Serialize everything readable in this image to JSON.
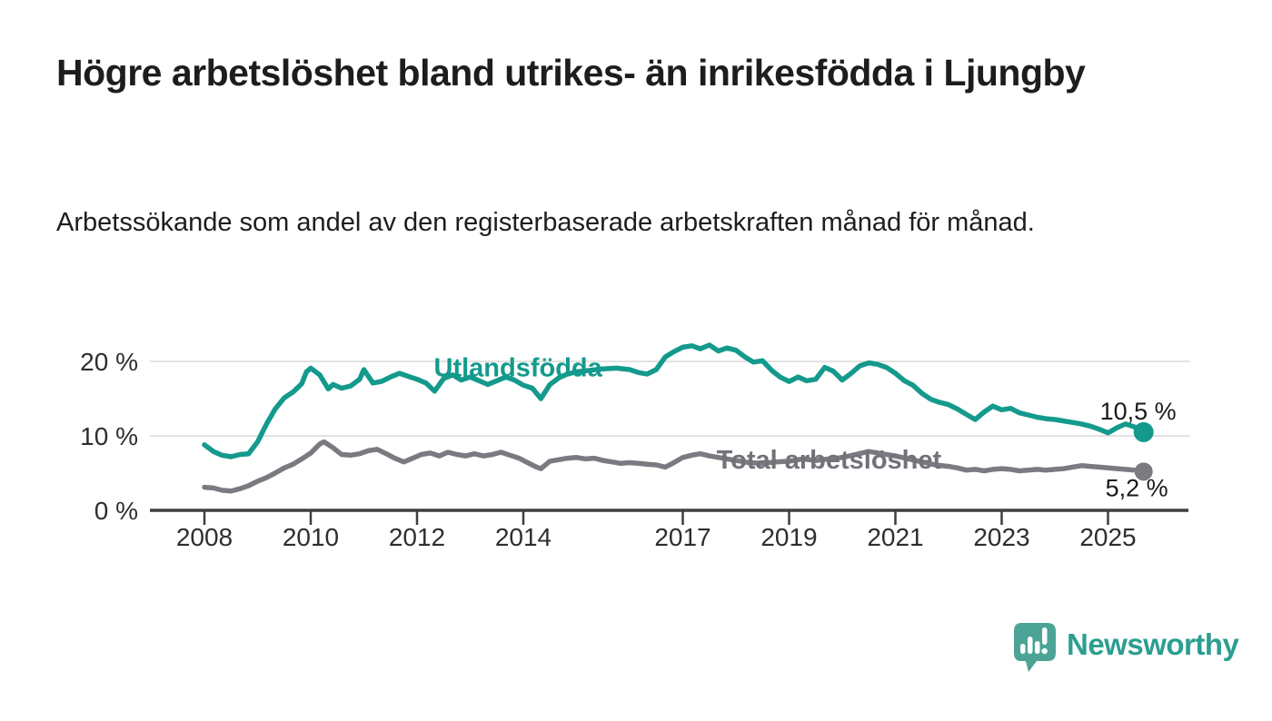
{
  "header": {
    "title": "Högre arbetslöshet bland utrikes- än inrikesfödda i Ljungby",
    "subtitle": "Arbetssökande som andel av den registerbaserade arbetskraften månad för månad."
  },
  "footer": {
    "brand": "Newsworthy",
    "logo_icon": "newsworthy-speech-bubble-bar-chart-icon"
  },
  "colors": {
    "background": "#ffffff",
    "title_text": "#1d1d1b",
    "axis_text": "#2e2e2e",
    "gridline": "#d9d9d9",
    "axis_line": "#3e3e3e",
    "value_label_text": "#1a1a1a",
    "series_foreign_born": "#149a8c",
    "series_total": "#7c7a80",
    "series_total_label": "#737179",
    "brand_teal": "#2b9e90",
    "logo_fill": "#4ba496"
  },
  "chart_data": {
    "type": "line",
    "title": "Högre arbetslöshet bland utrikes- än inrikesfödda i Ljungby",
    "subtitle": "Arbetssökande som andel av den registerbaserade arbetskraften månad för månad.",
    "xlabel": "",
    "ylabel": "",
    "grid": true,
    "legend_position": "inline-labels",
    "x_axis": {
      "range": [
        2007.6,
        2026.3
      ],
      "ticks": [
        {
          "value": 2008,
          "label": "2008"
        },
        {
          "value": 2010,
          "label": "2010"
        },
        {
          "value": 2012,
          "label": "2012"
        },
        {
          "value": 2014,
          "label": "2014"
        },
        {
          "value": 2017,
          "label": "2017"
        },
        {
          "value": 2019,
          "label": "2019"
        },
        {
          "value": 2021,
          "label": "2021"
        },
        {
          "value": 2023,
          "label": "2023"
        },
        {
          "value": 2025,
          "label": "2025"
        }
      ]
    },
    "y_axis": {
      "range": [
        0,
        24
      ],
      "unit": "%",
      "ticks": [
        {
          "value": 0,
          "label": "0 %"
        },
        {
          "value": 10,
          "label": "10 %"
        },
        {
          "value": 20,
          "label": "20 %"
        }
      ]
    },
    "series": [
      {
        "name": "Utlandsfödda",
        "label": "Utlandsfödda",
        "end_label": "10,5 %",
        "end_value": 10.5,
        "color": "#149a8c",
        "label_color": "#149a8c",
        "label_pos": {
          "x": 2013.9,
          "y": 19.2
        },
        "points": [
          [
            2008.0,
            8.8
          ],
          [
            2008.17,
            7.9
          ],
          [
            2008.33,
            7.4
          ],
          [
            2008.5,
            7.2
          ],
          [
            2008.67,
            7.5
          ],
          [
            2008.83,
            7.6
          ],
          [
            2009.0,
            9.2
          ],
          [
            2009.17,
            11.6
          ],
          [
            2009.33,
            13.6
          ],
          [
            2009.5,
            15.1
          ],
          [
            2009.67,
            15.9
          ],
          [
            2009.83,
            17.0
          ],
          [
            2009.92,
            18.6
          ],
          [
            2010.0,
            19.1
          ],
          [
            2010.17,
            18.2
          ],
          [
            2010.33,
            16.3
          ],
          [
            2010.42,
            16.9
          ],
          [
            2010.58,
            16.4
          ],
          [
            2010.75,
            16.7
          ],
          [
            2010.92,
            17.6
          ],
          [
            2011.0,
            18.9
          ],
          [
            2011.17,
            17.1
          ],
          [
            2011.33,
            17.3
          ],
          [
            2011.5,
            17.9
          ],
          [
            2011.67,
            18.4
          ],
          [
            2011.83,
            18.0
          ],
          [
            2012.0,
            17.6
          ],
          [
            2012.17,
            17.1
          ],
          [
            2012.33,
            16.0
          ],
          [
            2012.5,
            17.7
          ],
          [
            2012.67,
            18.2
          ],
          [
            2012.83,
            17.5
          ],
          [
            2013.0,
            17.9
          ],
          [
            2013.17,
            17.4
          ],
          [
            2013.33,
            16.9
          ],
          [
            2013.5,
            17.4
          ],
          [
            2013.67,
            17.9
          ],
          [
            2013.83,
            17.5
          ],
          [
            2014.0,
            16.8
          ],
          [
            2014.17,
            16.4
          ],
          [
            2014.33,
            15.0
          ],
          [
            2014.5,
            16.9
          ],
          [
            2014.67,
            17.8
          ],
          [
            2014.83,
            18.3
          ],
          [
            2015.0,
            18.6
          ],
          [
            2015.25,
            18.8
          ],
          [
            2015.5,
            19.0
          ],
          [
            2015.75,
            19.1
          ],
          [
            2016.0,
            18.9
          ],
          [
            2016.17,
            18.5
          ],
          [
            2016.33,
            18.3
          ],
          [
            2016.5,
            18.9
          ],
          [
            2016.67,
            20.6
          ],
          [
            2016.83,
            21.3
          ],
          [
            2017.0,
            21.9
          ],
          [
            2017.17,
            22.1
          ],
          [
            2017.33,
            21.7
          ],
          [
            2017.5,
            22.2
          ],
          [
            2017.67,
            21.4
          ],
          [
            2017.83,
            21.8
          ],
          [
            2018.0,
            21.5
          ],
          [
            2018.17,
            20.6
          ],
          [
            2018.33,
            19.9
          ],
          [
            2018.5,
            20.1
          ],
          [
            2018.67,
            18.8
          ],
          [
            2018.83,
            17.9
          ],
          [
            2019.0,
            17.3
          ],
          [
            2019.17,
            17.9
          ],
          [
            2019.33,
            17.4
          ],
          [
            2019.5,
            17.6
          ],
          [
            2019.67,
            19.2
          ],
          [
            2019.83,
            18.7
          ],
          [
            2020.0,
            17.5
          ],
          [
            2020.17,
            18.4
          ],
          [
            2020.33,
            19.4
          ],
          [
            2020.5,
            19.8
          ],
          [
            2020.67,
            19.6
          ],
          [
            2020.83,
            19.2
          ],
          [
            2021.0,
            18.4
          ],
          [
            2021.17,
            17.4
          ],
          [
            2021.33,
            16.8
          ],
          [
            2021.5,
            15.7
          ],
          [
            2021.67,
            14.9
          ],
          [
            2021.83,
            14.5
          ],
          [
            2022.0,
            14.2
          ],
          [
            2022.17,
            13.6
          ],
          [
            2022.33,
            12.9
          ],
          [
            2022.5,
            12.2
          ],
          [
            2022.67,
            13.2
          ],
          [
            2022.83,
            14.0
          ],
          [
            2023.0,
            13.5
          ],
          [
            2023.17,
            13.7
          ],
          [
            2023.33,
            13.1
          ],
          [
            2023.5,
            12.8
          ],
          [
            2023.67,
            12.5
          ],
          [
            2023.83,
            12.3
          ],
          [
            2024.0,
            12.2
          ],
          [
            2024.17,
            12.0
          ],
          [
            2024.33,
            11.8
          ],
          [
            2024.5,
            11.6
          ],
          [
            2024.67,
            11.3
          ],
          [
            2024.83,
            10.9
          ],
          [
            2025.0,
            10.4
          ],
          [
            2025.17,
            11.1
          ],
          [
            2025.33,
            11.6
          ],
          [
            2025.5,
            11.2
          ],
          [
            2025.67,
            10.5
          ]
        ]
      },
      {
        "name": "Total arbetslöshet",
        "label": "Total arbetslöshet",
        "end_label": "5,2 %",
        "end_value": 5.2,
        "color": "#7c7a80",
        "label_color": "#737179",
        "label_pos": {
          "x": 2019.75,
          "y": 6.8
        },
        "points": [
          [
            2008.0,
            3.1
          ],
          [
            2008.17,
            3.0
          ],
          [
            2008.33,
            2.7
          ],
          [
            2008.5,
            2.6
          ],
          [
            2008.67,
            2.9
          ],
          [
            2008.83,
            3.3
          ],
          [
            2009.0,
            3.9
          ],
          [
            2009.17,
            4.4
          ],
          [
            2009.33,
            5.0
          ],
          [
            2009.5,
            5.7
          ],
          [
            2009.67,
            6.2
          ],
          [
            2009.83,
            6.9
          ],
          [
            2010.0,
            7.7
          ],
          [
            2010.17,
            8.9
          ],
          [
            2010.25,
            9.2
          ],
          [
            2010.42,
            8.4
          ],
          [
            2010.58,
            7.5
          ],
          [
            2010.75,
            7.4
          ],
          [
            2010.92,
            7.6
          ],
          [
            2011.08,
            8.0
          ],
          [
            2011.25,
            8.2
          ],
          [
            2011.42,
            7.6
          ],
          [
            2011.58,
            7.0
          ],
          [
            2011.75,
            6.5
          ],
          [
            2011.92,
            7.0
          ],
          [
            2012.08,
            7.5
          ],
          [
            2012.25,
            7.7
          ],
          [
            2012.42,
            7.3
          ],
          [
            2012.58,
            7.8
          ],
          [
            2012.75,
            7.5
          ],
          [
            2012.92,
            7.3
          ],
          [
            2013.08,
            7.6
          ],
          [
            2013.25,
            7.3
          ],
          [
            2013.42,
            7.5
          ],
          [
            2013.58,
            7.8
          ],
          [
            2013.75,
            7.4
          ],
          [
            2013.92,
            7.0
          ],
          [
            2014.08,
            6.4
          ],
          [
            2014.25,
            5.8
          ],
          [
            2014.33,
            5.6
          ],
          [
            2014.5,
            6.6
          ],
          [
            2014.67,
            6.8
          ],
          [
            2014.83,
            7.0
          ],
          [
            2015.0,
            7.1
          ],
          [
            2015.17,
            6.9
          ],
          [
            2015.33,
            7.0
          ],
          [
            2015.5,
            6.7
          ],
          [
            2015.67,
            6.5
          ],
          [
            2015.83,
            6.3
          ],
          [
            2016.0,
            6.4
          ],
          [
            2016.17,
            6.3
          ],
          [
            2016.33,
            6.2
          ],
          [
            2016.5,
            6.1
          ],
          [
            2016.67,
            5.8
          ],
          [
            2016.83,
            6.4
          ],
          [
            2017.0,
            7.1
          ],
          [
            2017.17,
            7.4
          ],
          [
            2017.33,
            7.6
          ],
          [
            2017.5,
            7.3
          ],
          [
            2017.75,
            7.0
          ],
          [
            2018.0,
            6.7
          ],
          [
            2018.25,
            6.4
          ],
          [
            2018.5,
            6.3
          ],
          [
            2018.75,
            6.5
          ],
          [
            2019.0,
            6.6
          ],
          [
            2019.25,
            6.9
          ],
          [
            2019.5,
            6.7
          ],
          [
            2019.75,
            6.9
          ],
          [
            2020.0,
            7.1
          ],
          [
            2020.25,
            7.5
          ],
          [
            2020.5,
            7.9
          ],
          [
            2020.75,
            7.6
          ],
          [
            2021.0,
            7.3
          ],
          [
            2021.25,
            6.9
          ],
          [
            2021.5,
            6.5
          ],
          [
            2021.75,
            6.1
          ],
          [
            2022.0,
            5.9
          ],
          [
            2022.17,
            5.7
          ],
          [
            2022.33,
            5.4
          ],
          [
            2022.5,
            5.5
          ],
          [
            2022.67,
            5.3
          ],
          [
            2022.83,
            5.5
          ],
          [
            2023.0,
            5.6
          ],
          [
            2023.17,
            5.5
          ],
          [
            2023.33,
            5.3
          ],
          [
            2023.5,
            5.4
          ],
          [
            2023.67,
            5.5
          ],
          [
            2023.83,
            5.4
          ],
          [
            2024.0,
            5.5
          ],
          [
            2024.17,
            5.6
          ],
          [
            2024.33,
            5.8
          ],
          [
            2024.5,
            6.0
          ],
          [
            2024.67,
            5.9
          ],
          [
            2024.83,
            5.8
          ],
          [
            2025.0,
            5.7
          ],
          [
            2025.17,
            5.6
          ],
          [
            2025.33,
            5.5
          ],
          [
            2025.5,
            5.4
          ],
          [
            2025.67,
            5.2
          ]
        ]
      }
    ]
  }
}
